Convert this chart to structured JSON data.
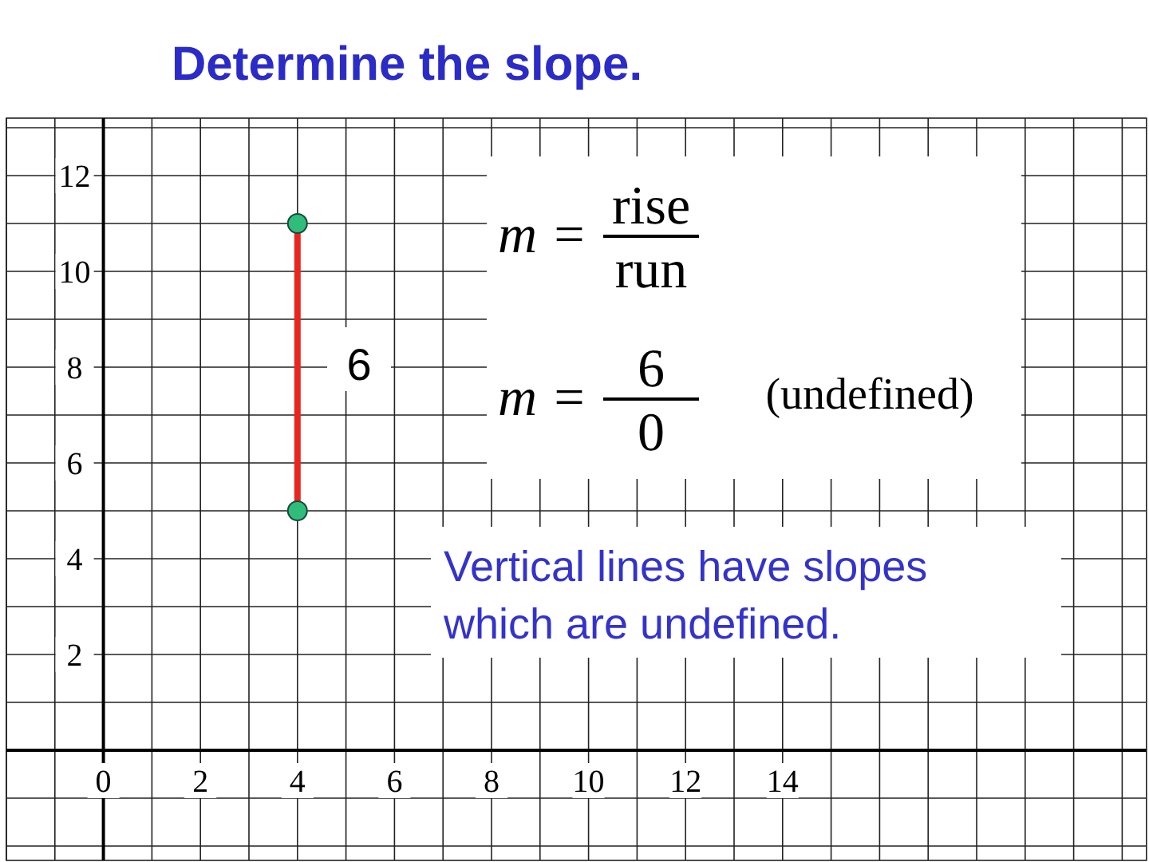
{
  "chart_data": {
    "type": "line",
    "title": "Determine the slope.",
    "series": [
      {
        "x": [
          4,
          4
        ],
        "values": [
          5,
          11
        ],
        "color": "#e8261f",
        "marker": "circle"
      }
    ],
    "xlim": [
      -2,
      21.5
    ],
    "ylim": [
      -2.3,
      13.2
    ],
    "xticks": [
      {
        "value": -2,
        "label": null
      },
      {
        "value": -1,
        "label": null
      },
      0,
      {
        "value": 1,
        "label": null
      },
      2,
      {
        "value": 3,
        "label": null
      },
      4,
      {
        "value": 5,
        "label": null
      },
      6,
      {
        "value": 7,
        "label": null
      },
      8,
      {
        "value": 9,
        "label": null
      },
      10,
      {
        "value": 11,
        "label": null
      },
      12,
      {
        "value": 13,
        "label": null
      },
      14,
      {
        "value": 15,
        "label": null
      },
      {
        "value": 16,
        "label": null
      },
      {
        "value": 17,
        "label": null
      },
      {
        "value": 18,
        "label": null
      },
      {
        "value": 19,
        "label": null
      },
      {
        "value": 20,
        "label": null
      },
      {
        "value": 21,
        "label": null
      }
    ],
    "yticks": [
      {
        "value": -2,
        "label": null
      },
      {
        "value": -1,
        "label": null
      },
      {
        "value": 1,
        "label": null
      },
      2,
      {
        "value": 3,
        "label": null
      },
      4,
      {
        "value": 5,
        "label": null
      },
      6,
      {
        "value": 7,
        "label": null
      },
      8,
      {
        "value": 9,
        "label": null
      },
      10,
      {
        "value": 11,
        "label": null
      },
      12,
      {
        "value": 13,
        "label": null
      }
    ],
    "grid": true,
    "annotations": [
      "6",
      "m =",
      "rise",
      "run",
      "m =",
      "6",
      "0",
      "(undefined)",
      "Vertical lines have slopes which are undefined."
    ]
  }
}
